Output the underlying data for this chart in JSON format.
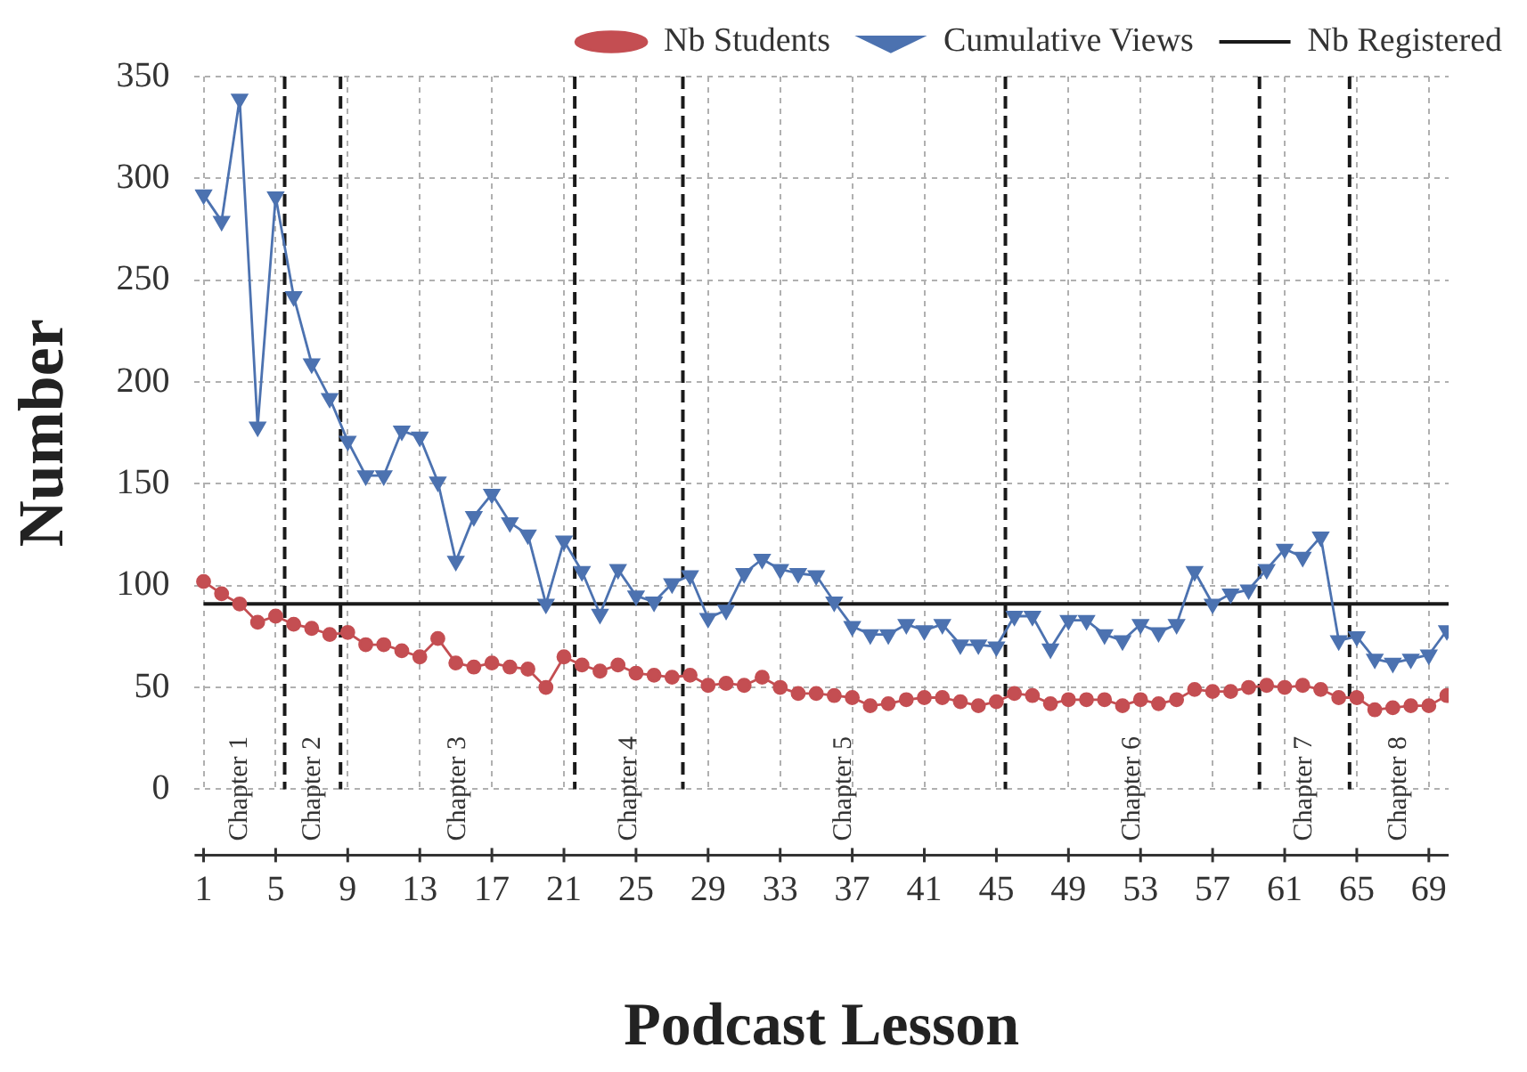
{
  "chart_data": {
    "type": "line",
    "xlabel": "Podcast Lesson",
    "ylabel": "Number",
    "x": [
      1,
      2,
      3,
      4,
      5,
      6,
      7,
      8,
      9,
      10,
      11,
      12,
      13,
      14,
      15,
      16,
      17,
      18,
      19,
      20,
      21,
      22,
      23,
      24,
      25,
      26,
      27,
      28,
      29,
      30,
      31,
      32,
      33,
      34,
      35,
      36,
      37,
      38,
      39,
      40,
      41,
      42,
      43,
      44,
      45,
      46,
      47,
      48,
      49,
      50,
      51,
      52,
      53,
      54,
      55,
      56,
      57,
      58,
      59,
      60,
      61,
      62,
      63,
      64,
      65,
      66,
      67,
      68,
      69,
      70
    ],
    "series": [
      {
        "name": "Nb Students",
        "color": "#c44e52",
        "marker": "circle",
        "values": [
          102,
          96,
          91,
          82,
          85,
          81,
          79,
          76,
          77,
          71,
          71,
          68,
          65,
          74,
          62,
          60,
          62,
          60,
          59,
          50,
          65,
          61,
          58,
          61,
          57,
          56,
          55,
          56,
          51,
          52,
          51,
          55,
          50,
          47,
          47,
          46,
          45,
          41,
          42,
          44,
          45,
          45,
          43,
          41,
          43,
          47,
          46,
          42,
          44,
          44,
          44,
          41,
          44,
          42,
          44,
          49,
          48,
          48,
          50,
          51,
          50,
          51,
          49,
          45,
          45,
          39,
          40,
          41,
          41,
          46
        ]
      },
      {
        "name": "Cumulative Views",
        "color": "#4c72b0",
        "marker": "triangle",
        "values": [
          292,
          279,
          339,
          178,
          291,
          242,
          209,
          192,
          171,
          154,
          154,
          176,
          173,
          151,
          112,
          134,
          145,
          131,
          125,
          91,
          122,
          107,
          86,
          108,
          95,
          92,
          101,
          105,
          84,
          88,
          106,
          113,
          108,
          106,
          105,
          92,
          80,
          76,
          76,
          81,
          78,
          81,
          71,
          71,
          70,
          85,
          85,
          69,
          83,
          83,
          76,
          73,
          81,
          77,
          81,
          107,
          91,
          96,
          98,
          108,
          118,
          114,
          124,
          73,
          75,
          64,
          62,
          64,
          66,
          78
        ]
      },
      {
        "name": "Nb Registered",
        "color": "#1a1a1a",
        "type": "line",
        "marker": "none",
        "line_style": "solid",
        "x": [
          1,
          70.1
        ],
        "values": [
          91,
          91
        ]
      }
    ],
    "xlim": [
      0.5,
      70.1
    ],
    "ylim": [
      0,
      350
    ],
    "xticks": [
      1,
      5,
      9,
      13,
      17,
      21,
      25,
      29,
      33,
      37,
      41,
      45,
      49,
      53,
      57,
      61,
      65,
      69
    ],
    "yticks": [
      0,
      50,
      100,
      150,
      200,
      250,
      300,
      350
    ],
    "grid": true,
    "legend": "top",
    "ref_lines": [
      {
        "axis": "x",
        "value": 5.5,
        "color": "#1a1a1a",
        "line_style": "dashed"
      },
      {
        "axis": "x",
        "value": 8.6,
        "color": "#1a1a1a",
        "line_style": "dashed"
      },
      {
        "axis": "x",
        "value": 21.6,
        "color": "#1a1a1a",
        "line_style": "dashed"
      },
      {
        "axis": "x",
        "value": 27.6,
        "color": "#1a1a1a",
        "line_style": "dashed"
      },
      {
        "axis": "x",
        "value": 45.5,
        "color": "#1a1a1a",
        "line_style": "dashed"
      },
      {
        "axis": "x",
        "value": 59.6,
        "color": "#1a1a1a",
        "line_style": "dashed"
      },
      {
        "axis": "x",
        "value": 64.6,
        "color": "#1a1a1a",
        "line_style": "dashed"
      }
    ],
    "annotations": [
      "Chapter 1",
      "Chapter 2",
      "Chapter 3",
      "Chapter 4",
      "Chapter 5",
      "Chapter 6",
      "Chapter 7",
      "Chapter 8"
    ]
  }
}
